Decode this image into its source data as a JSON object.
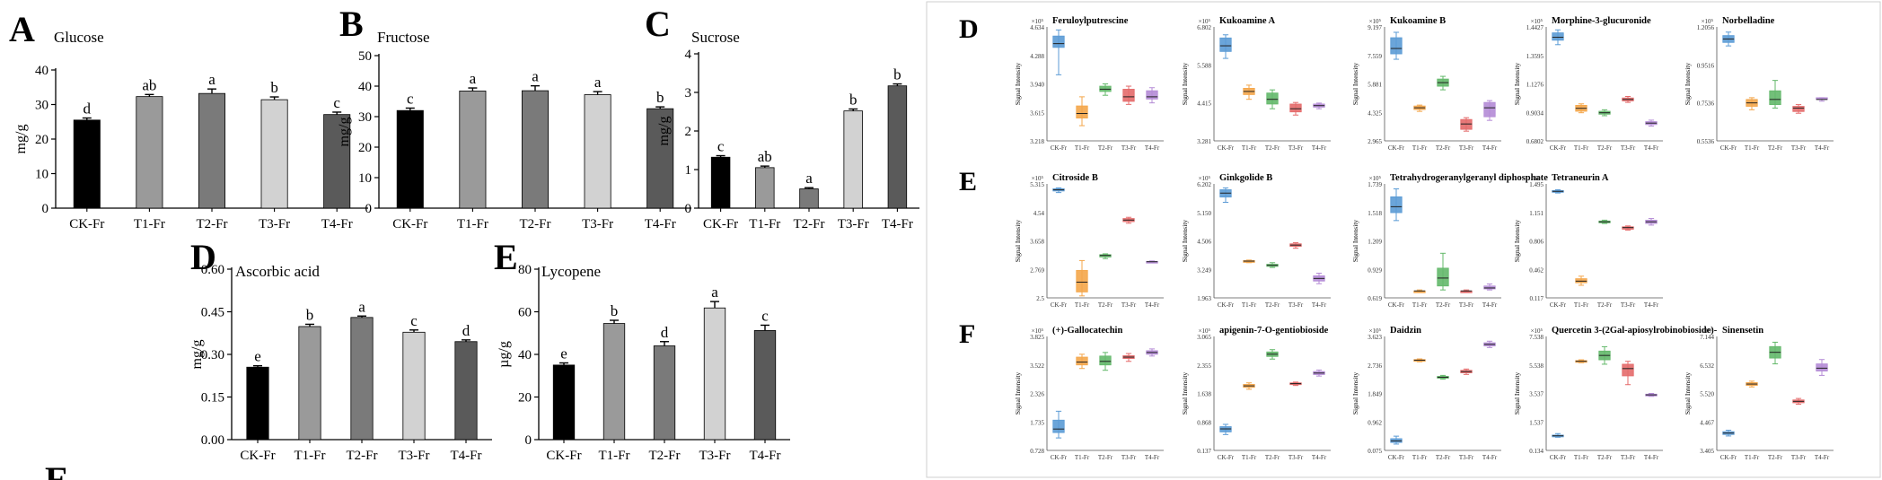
{
  "figure": {
    "left_letters": [
      "A",
      "B",
      "C",
      "D",
      "E"
    ],
    "right_letters": [
      "D",
      "E",
      "F"
    ],
    "footer_fragment": "E"
  },
  "colors": {
    "CK-Fr": "#000000",
    "T1-Fr": "#9a9a9a",
    "T2-Fr": "#7a7a7a",
    "T3-Fr": "#d2d2d2",
    "T4-Fr": "#5a5a5a",
    "box_CK": "#5b9bd5",
    "box_T1": "#f4a64a",
    "box_T2": "#63b86a",
    "box_T3": "#e46a6a",
    "box_T4": "#b48bd6"
  },
  "chart_data": [
    {
      "id": "A",
      "type": "bar",
      "title": "Glucose",
      "ylabel": "mg/g",
      "ylim": [
        0,
        40
      ],
      "yticks": [
        "0",
        "10",
        "20",
        "30",
        "40"
      ],
      "categories": [
        "CK-Fr",
        "T1-Fr",
        "T2-Fr",
        "T3-Fr",
        "T4-Fr"
      ],
      "values": [
        25.5,
        32.3,
        33.2,
        31.4,
        27.1
      ],
      "errors": [
        0.6,
        0.6,
        1.3,
        0.8,
        0.7
      ],
      "letters": [
        "d",
        "ab",
        "a",
        "b",
        "c"
      ]
    },
    {
      "id": "B",
      "type": "bar",
      "title": "Fructose",
      "ylabel": "mg/g",
      "ylim": [
        0,
        50
      ],
      "yticks": [
        "0",
        "10",
        "20",
        "30",
        "40",
        "50"
      ],
      "categories": [
        "CK-Fr",
        "T1-Fr",
        "T2-Fr",
        "T3-Fr",
        "T4-Fr"
      ],
      "values": [
        32.0,
        38.4,
        38.5,
        37.2,
        32.6
      ],
      "errors": [
        0.8,
        1.0,
        1.6,
        1.0,
        0.6
      ],
      "letters": [
        "c",
        "a",
        "a",
        "a",
        "b"
      ]
    },
    {
      "id": "C",
      "type": "bar",
      "title": "Sucrose",
      "ylabel": "mg/g",
      "ylim": [
        0,
        4
      ],
      "yticks": [
        "0",
        "1",
        "2",
        "3",
        "4"
      ],
      "categories": [
        "CK-Fr",
        "T1-Fr",
        "T2-Fr",
        "T3-Fr",
        "T4-Fr"
      ],
      "values": [
        1.32,
        1.05,
        0.5,
        2.52,
        3.17
      ],
      "errors": [
        0.04,
        0.04,
        0.03,
        0.05,
        0.05
      ],
      "letters": [
        "c",
        "ab",
        "a",
        "b",
        "b"
      ]
    },
    {
      "id": "D",
      "type": "bar",
      "title": "Ascorbic acid",
      "ylabel": "mg/g",
      "ylim": [
        0,
        0.6
      ],
      "yticks": [
        "0.00",
        "0.15",
        "0.30",
        "0.45",
        "0.60"
      ],
      "categories": [
        "CK-Fr",
        "T1-Fr",
        "T2-Fr",
        "T3-Fr",
        "T4-Fr"
      ],
      "values": [
        0.255,
        0.398,
        0.43,
        0.378,
        0.345
      ],
      "errors": [
        0.005,
        0.008,
        0.005,
        0.008,
        0.006
      ],
      "letters": [
        "e",
        "b",
        "a",
        "c",
        "d"
      ]
    },
    {
      "id": "E",
      "type": "bar",
      "title": "Lycopene",
      "ylabel": "µg/g",
      "ylim": [
        0,
        80
      ],
      "yticks": [
        "0",
        "20",
        "40",
        "60",
        "80"
      ],
      "categories": [
        "CK-Fr",
        "T1-Fr",
        "T2-Fr",
        "T3-Fr",
        "T4-Fr"
      ],
      "values": [
        35.0,
        54.5,
        44.0,
        61.8,
        51.2
      ],
      "errors": [
        1.0,
        1.5,
        2.0,
        3.0,
        2.5
      ],
      "letters": [
        "e",
        "b",
        "d",
        "a",
        "c"
      ]
    },
    {
      "id": "box-feruloylputrescine",
      "type": "box",
      "row": "D",
      "title": "Feruloylputrescine",
      "ylabel": "Signal Intensity",
      "exponent": "×10⁵",
      "ylim": [
        3.2,
        4.7
      ],
      "yticks": [
        "3.218",
        "3.615",
        "3.940",
        "4.288",
        "4.634"
      ],
      "categories": [
        "CK-Fr",
        "T1-Fr",
        "T2-Fr",
        "T3-Fr",
        "T4-Fr"
      ],
      "boxes": [
        [
          4.07,
          4.43,
          4.48,
          4.58,
          4.66
        ],
        [
          3.4,
          3.5,
          3.56,
          3.66,
          3.78
        ],
        [
          3.8,
          3.85,
          3.88,
          3.92,
          3.95
        ],
        [
          3.68,
          3.72,
          3.78,
          3.88,
          3.92
        ],
        [
          3.7,
          3.75,
          3.78,
          3.86,
          3.9
        ]
      ]
    },
    {
      "id": "box-kukoamine-a",
      "type": "box",
      "row": "D",
      "title": "Kukoamine A",
      "ylabel": "Signal Intensity",
      "exponent": "×10⁵",
      "ylim": [
        3.28,
        6.9
      ],
      "yticks": [
        "3.281",
        "4.415",
        "5.588",
        "6.802"
      ],
      "categories": [
        "CK-Fr",
        "T1-Fr",
        "T2-Fr",
        "T3-Fr",
        "T4-Fr"
      ],
      "boxes": [
        [
          5.9,
          6.12,
          6.3,
          6.55,
          6.65
        ],
        [
          4.6,
          4.75,
          4.85,
          4.95,
          5.05
        ],
        [
          4.3,
          4.45,
          4.6,
          4.8,
          4.9
        ],
        [
          4.1,
          4.2,
          4.3,
          4.45,
          4.5
        ],
        [
          4.3,
          4.35,
          4.4,
          4.45,
          4.48
        ]
      ]
    },
    {
      "id": "box-kukoamine-b",
      "type": "box",
      "row": "D",
      "title": "Kukoamine B",
      "ylabel": "Signal Intensity",
      "exponent": "×10⁵",
      "ylim": [
        2.96,
        9.3
      ],
      "yticks": [
        "2.965",
        "4.325",
        "5.881",
        "7.559",
        "9.197"
      ],
      "categories": [
        "CK-Fr",
        "T1-Fr",
        "T2-Fr",
        "T3-Fr",
        "T4-Fr"
      ],
      "boxes": [
        [
          7.5,
          7.8,
          8.1,
          8.7,
          9.0
        ],
        [
          4.6,
          4.7,
          4.8,
          4.9,
          4.95
        ],
        [
          5.8,
          6.0,
          6.2,
          6.4,
          6.55
        ],
        [
          3.5,
          3.6,
          3.9,
          4.15,
          4.25
        ],
        [
          4.1,
          4.3,
          4.8,
          5.1,
          5.2
        ]
      ]
    },
    {
      "id": "box-morphine-3-glucuronide",
      "type": "box",
      "row": "D",
      "title": "Morphine-3-glucuronide",
      "ylabel": "Signal Intensity",
      "exponent": "×10⁵",
      "ylim": [
        0.68,
        1.45
      ],
      "yticks": [
        "0.6802",
        "0.9034",
        "1.1276",
        "1.3595",
        "1.4427"
      ],
      "categories": [
        "CK-Fr",
        "T1-Fr",
        "T2-Fr",
        "T3-Fr",
        "T4-Fr"
      ],
      "boxes": [
        [
          1.33,
          1.36,
          1.38,
          1.41,
          1.43
        ],
        [
          0.87,
          0.88,
          0.9,
          0.92,
          0.93
        ],
        [
          0.85,
          0.86,
          0.87,
          0.88,
          0.89
        ],
        [
          0.94,
          0.95,
          0.96,
          0.97,
          0.98
        ],
        [
          0.78,
          0.79,
          0.8,
          0.81,
          0.82
        ]
      ]
    },
    {
      "id": "box-norbelladine",
      "type": "box",
      "row": "D",
      "title": "Norbelladine",
      "ylabel": "Signal Intensity",
      "exponent": "×10⁵",
      "ylim": [
        0.55,
        1.21
      ],
      "yticks": [
        "0.5536",
        "0.7536",
        "0.9516",
        "1.2056"
      ],
      "categories": [
        "CK-Fr",
        "T1-Fr",
        "T2-Fr",
        "T3-Fr",
        "T4-Fr"
      ],
      "boxes": [
        [
          1.1,
          1.12,
          1.14,
          1.16,
          1.18
        ],
        [
          0.73,
          0.75,
          0.77,
          0.79,
          0.8
        ],
        [
          0.74,
          0.76,
          0.79,
          0.84,
          0.9
        ],
        [
          0.71,
          0.72,
          0.74,
          0.75,
          0.76
        ],
        [
          0.78,
          0.79,
          0.79,
          0.8,
          0.8
        ]
      ]
    },
    {
      "id": "box-citroside-b",
      "type": "box",
      "row": "E",
      "title": "Citroside B",
      "ylabel": "Signal Intensity",
      "exponent": "×10⁵",
      "ylim": [
        2.5,
        5.4
      ],
      "yticks": [
        "2.5",
        "2.769",
        "3.658",
        "4.54",
        "5.315"
      ],
      "categories": [
        "CK-Fr",
        "T1-Fr",
        "T2-Fr",
        "T3-Fr",
        "T4-Fr"
      ],
      "boxes": [
        [
          5.18,
          5.22,
          5.25,
          5.28,
          5.3
        ],
        [
          2.55,
          2.65,
          2.9,
          3.2,
          3.45
        ],
        [
          3.5,
          3.54,
          3.58,
          3.6,
          3.62
        ],
        [
          4.4,
          4.44,
          4.48,
          4.52,
          4.55
        ],
        [
          3.4,
          3.41,
          3.42,
          3.43,
          3.44
        ]
      ]
    },
    {
      "id": "box-ginkgolide-b",
      "type": "box",
      "row": "E",
      "title": "Ginkgolide B",
      "ylabel": "Signal Intensity",
      "exponent": "×10⁵",
      "ylim": [
        1.96,
        6.3
      ],
      "yticks": [
        "1.963",
        "3.249",
        "4.506",
        "5.150",
        "6.202"
      ],
      "categories": [
        "CK-Fr",
        "T1-Fr",
        "T2-Fr",
        "T3-Fr",
        "T4-Fr"
      ],
      "boxes": [
        [
          5.6,
          5.8,
          5.95,
          6.08,
          6.15
        ],
        [
          3.3,
          3.34,
          3.36,
          3.38,
          3.4
        ],
        [
          3.12,
          3.16,
          3.2,
          3.24,
          3.3
        ],
        [
          3.85,
          3.92,
          3.97,
          4.02,
          4.06
        ],
        [
          2.5,
          2.6,
          2.7,
          2.8,
          2.9
        ]
      ]
    },
    {
      "id": "box-tetrahydrogeranylgeranyl-diphosphate",
      "type": "box",
      "row": "E",
      "title": "Tetrahydrogeranylgeranyl diphosphate",
      "ylabel": "Signal Intensity",
      "exponent": "×10⁵",
      "ylim": [
        0.6,
        1.75
      ],
      "yticks": [
        "0.619",
        "0.929",
        "1.209",
        "1.518",
        "1.739"
      ],
      "categories": [
        "CK-Fr",
        "T1-Fr",
        "T2-Fr",
        "T3-Fr",
        "T4-Fr"
      ],
      "boxes": [
        [
          1.38,
          1.46,
          1.52,
          1.62,
          1.7
        ],
        [
          0.66,
          0.67,
          0.67,
          0.67,
          0.68
        ],
        [
          0.68,
          0.72,
          0.8,
          0.9,
          1.05
        ],
        [
          0.66,
          0.67,
          0.67,
          0.67,
          0.68
        ],
        [
          0.68,
          0.69,
          0.7,
          0.72,
          0.74
        ]
      ]
    },
    {
      "id": "box-tetraneurin-a",
      "type": "box",
      "row": "E",
      "title": "Tetraneurin A",
      "ylabel": "Signal Intensity",
      "exponent": "×10⁴",
      "ylim": [
        0.117,
        1.5
      ],
      "yticks": [
        "0.117",
        "0.462",
        "0.806",
        "1.151",
        "1.495"
      ],
      "categories": [
        "CK-Fr",
        "T1-Fr",
        "T2-Fr",
        "T3-Fr",
        "T4-Fr"
      ],
      "boxes": [
        [
          1.39,
          1.4,
          1.41,
          1.42,
          1.43
        ],
        [
          0.27,
          0.3,
          0.32,
          0.35,
          0.38
        ],
        [
          1.02,
          1.03,
          1.04,
          1.05,
          1.06
        ],
        [
          0.94,
          0.95,
          0.97,
          0.98,
          0.99
        ],
        [
          1.0,
          1.02,
          1.04,
          1.06,
          1.08
        ]
      ]
    },
    {
      "id": "box-gallocatechin",
      "type": "box",
      "row": "F",
      "title": "(+)-Gallocatechin",
      "ylabel": "Signal Intensity",
      "exponent": "×10⁵",
      "ylim": [
        0.7,
        3.9
      ],
      "yticks": [
        "0.728",
        "1.735",
        "2.326",
        "3.522",
        "3.825"
      ],
      "categories": [
        "CK-Fr",
        "T1-Fr",
        "T2-Fr",
        "T3-Fr",
        "T4-Fr"
      ],
      "boxes": [
        [
          1.05,
          1.2,
          1.3,
          1.55,
          1.8
        ],
        [
          3.0,
          3.1,
          3.18,
          3.32,
          3.4
        ],
        [
          2.95,
          3.1,
          3.2,
          3.35,
          3.45
        ],
        [
          3.2,
          3.28,
          3.32,
          3.36,
          3.42
        ],
        [
          3.35,
          3.4,
          3.45,
          3.5,
          3.55
        ]
      ]
    },
    {
      "id": "box-apigenin-7-o-gentiobioside",
      "type": "box",
      "row": "F",
      "title": "apigenin-7-O-gentiobioside",
      "ylabel": "Signal Intensity",
      "exponent": "×10⁵",
      "ylim": [
        0.13,
        3.15
      ],
      "yticks": [
        "0.137",
        "0.868",
        "1.638",
        "2.355",
        "3.065"
      ],
      "categories": [
        "CK-Fr",
        "T1-Fr",
        "T2-Fr",
        "T3-Fr",
        "T4-Fr"
      ],
      "boxes": [
        [
          0.55,
          0.62,
          0.7,
          0.76,
          0.82
        ],
        [
          1.75,
          1.8,
          1.84,
          1.88,
          1.92
        ],
        [
          2.55,
          2.62,
          2.68,
          2.74,
          2.8
        ],
        [
          1.85,
          1.88,
          1.9,
          1.92,
          1.94
        ],
        [
          2.1,
          2.14,
          2.18,
          2.22,
          2.26
        ]
      ]
    },
    {
      "id": "box-daidzin",
      "type": "box",
      "row": "F",
      "title": "Daidzin",
      "ylabel": "Signal Intensity",
      "exponent": "×10⁵",
      "ylim": [
        0.05,
        3.65
      ],
      "yticks": [
        "0.075",
        "0.962",
        "1.849",
        "2.736",
        "3.623"
      ],
      "categories": [
        "CK-Fr",
        "T1-Fr",
        "T2-Fr",
        "T3-Fr",
        "T4-Fr"
      ],
      "boxes": [
        [
          0.25,
          0.3,
          0.35,
          0.42,
          0.5
        ],
        [
          2.85,
          2.88,
          2.9,
          2.92,
          2.94
        ],
        [
          2.3,
          2.33,
          2.36,
          2.39,
          2.42
        ],
        [
          2.45,
          2.5,
          2.54,
          2.58,
          2.62
        ],
        [
          3.3,
          3.35,
          3.4,
          3.45,
          3.5
        ]
      ]
    },
    {
      "id": "box-quercetin",
      "type": "box",
      "row": "F",
      "title": "Quercetin 3-(2Gal-apiosylrobinobioside)-",
      "ylabel": "Signal Intensity",
      "exponent": "×10⁵",
      "ylim": [
        0.1,
        7.9
      ],
      "yticks": [
        "0.134",
        "1.537",
        "3.537",
        "5.538",
        "7.538"
      ],
      "categories": [
        "CK-Fr",
        "T1-Fr",
        "T2-Fr",
        "T3-Fr",
        "T4-Fr"
      ],
      "boxes": [
        [
          1.0,
          1.05,
          1.1,
          1.15,
          1.25
        ],
        [
          6.1,
          6.15,
          6.2,
          6.25,
          6.3
        ],
        [
          6.0,
          6.3,
          6.6,
          6.9,
          7.2
        ],
        [
          4.6,
          5.2,
          5.7,
          6.0,
          6.2
        ],
        [
          3.8,
          3.85,
          3.9,
          3.95,
          4.0
        ]
      ]
    },
    {
      "id": "box-sinensetin",
      "type": "box",
      "row": "F",
      "title": "Sinensetin",
      "ylabel": "Signal Intensity",
      "exponent": "×10⁵",
      "ylim": [
        3.3,
        7.25
      ],
      "yticks": [
        "3.405",
        "4.467",
        "5.520",
        "6.532",
        "7.144"
      ],
      "categories": [
        "CK-Fr",
        "T1-Fr",
        "T2-Fr",
        "T3-Fr",
        "T4-Fr"
      ],
      "boxes": [
        [
          3.8,
          3.85,
          3.9,
          3.95,
          4.0
        ],
        [
          5.5,
          5.55,
          5.6,
          5.65,
          5.7
        ],
        [
          6.3,
          6.5,
          6.7,
          6.9,
          7.05
        ],
        [
          4.9,
          4.95,
          5.0,
          5.05,
          5.1
        ],
        [
          5.9,
          6.05,
          6.15,
          6.3,
          6.45
        ]
      ]
    }
  ]
}
